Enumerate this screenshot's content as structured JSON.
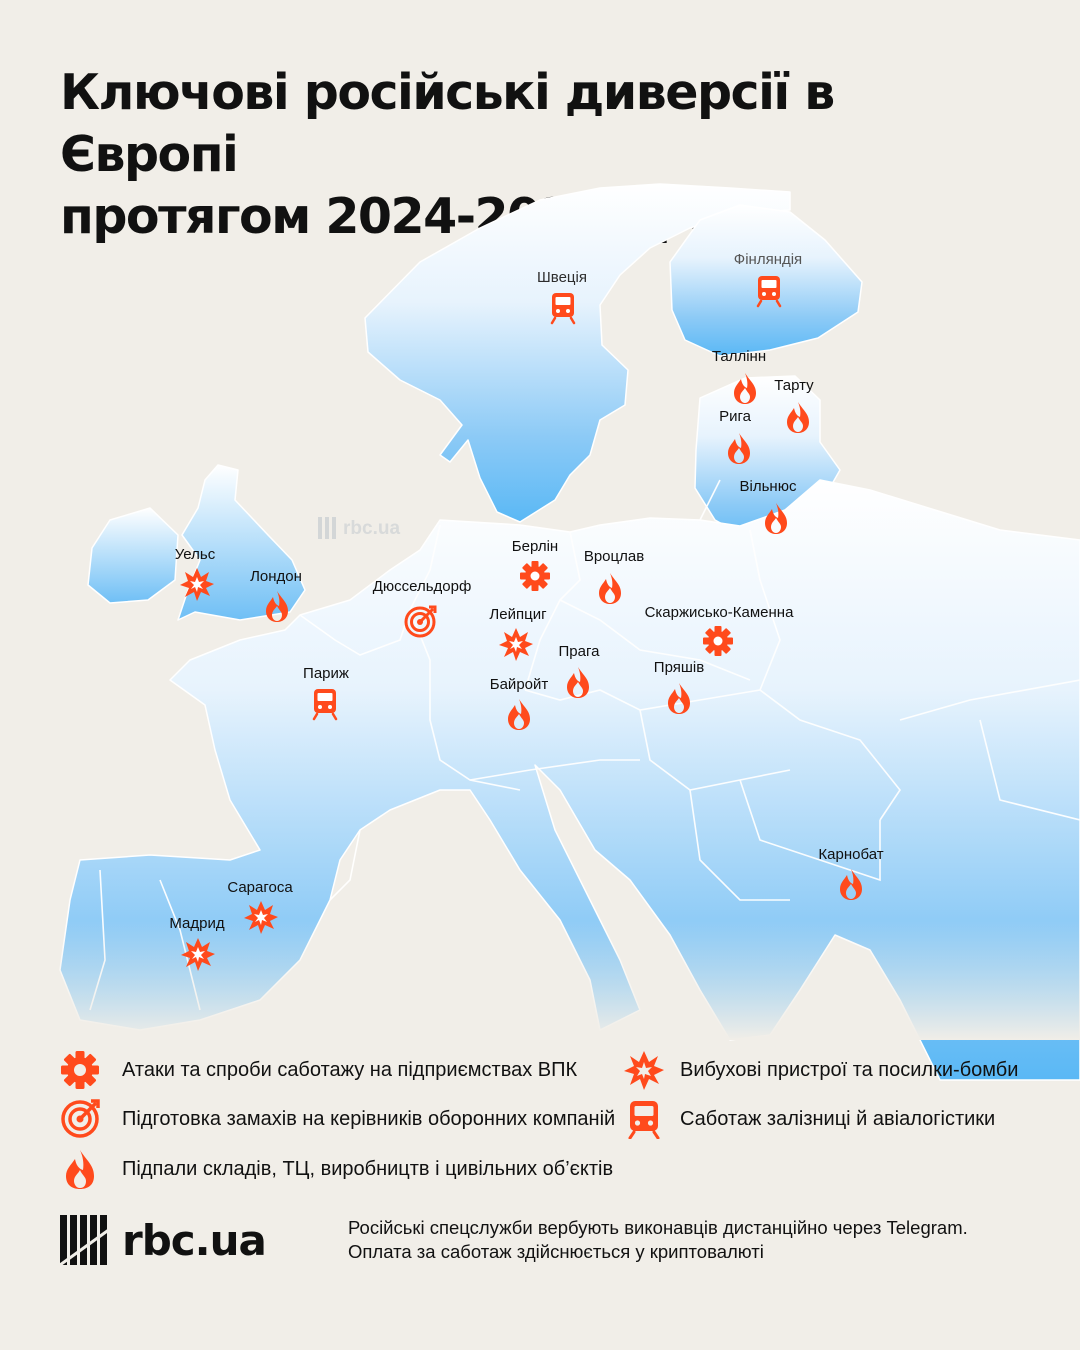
{
  "title_lines": [
    "Ключові російські диверсії в Європі",
    "протягом 2024-2026 рр."
  ],
  "colors": {
    "background": "#f1eee8",
    "land_top": "#ffffff",
    "land_bottom": "#5ab8f5",
    "accent": "#ff4a1c"
  },
  "watermark": "rbc.ua",
  "countries": [
    {
      "label": "Швеція",
      "icon": "train-icon"
    },
    {
      "label": "Фінляндія",
      "icon": "train-icon"
    }
  ],
  "cities": [
    {
      "label": "Таллінн",
      "icon": "fire-icon"
    },
    {
      "label": "Тарту",
      "icon": "fire-icon"
    },
    {
      "label": "Рига",
      "icon": "fire-icon"
    },
    {
      "label": "Вільнюс",
      "icon": "fire-icon"
    },
    {
      "label": "Уельс",
      "icon": "explosion-icon"
    },
    {
      "label": "Лондон",
      "icon": "fire-icon"
    },
    {
      "label": "Берлін",
      "icon": "gear-icon"
    },
    {
      "label": "Вроцлав",
      "icon": "fire-icon"
    },
    {
      "label": "Дюссельдорф",
      "icon": "target-icon"
    },
    {
      "label": "Лейпциг",
      "icon": "explosion-icon"
    },
    {
      "label": "Скаржисько-Каменна",
      "icon": "gear-icon"
    },
    {
      "label": "Прага",
      "icon": "fire-icon"
    },
    {
      "label": "Пряшів",
      "icon": "fire-icon"
    },
    {
      "label": "Байройт",
      "icon": "fire-icon"
    },
    {
      "label": "Париж",
      "icon": "train-icon"
    },
    {
      "label": "Карнобат",
      "icon": "fire-icon"
    },
    {
      "label": "Сарагоса",
      "icon": "explosion-icon"
    },
    {
      "label": "Мадрид",
      "icon": "explosion-icon"
    }
  ],
  "legend": [
    {
      "icon": "gear-icon",
      "label": "Атаки та спроби саботажу на підприємствах ВПК"
    },
    {
      "icon": "explosion-icon",
      "label": "Вибухові пристрої та посилки-бомби"
    },
    {
      "icon": "target-icon",
      "label": "Підготовка замахів на керівників оборонних компаній"
    },
    {
      "icon": "train-icon",
      "label": "Саботаж залізниці й авіалогістики"
    },
    {
      "icon": "fire-icon",
      "label": "Підпали складів, ТЦ, виробництв і цивільних об’єктів"
    }
  ],
  "footer": {
    "brand": "rbc.ua",
    "note_lines": [
      "Російські спецслужби вербують виконавців дистанційно через Telegram.",
      "Оплата за саботаж здійснюється у криптовалюті"
    ]
  }
}
